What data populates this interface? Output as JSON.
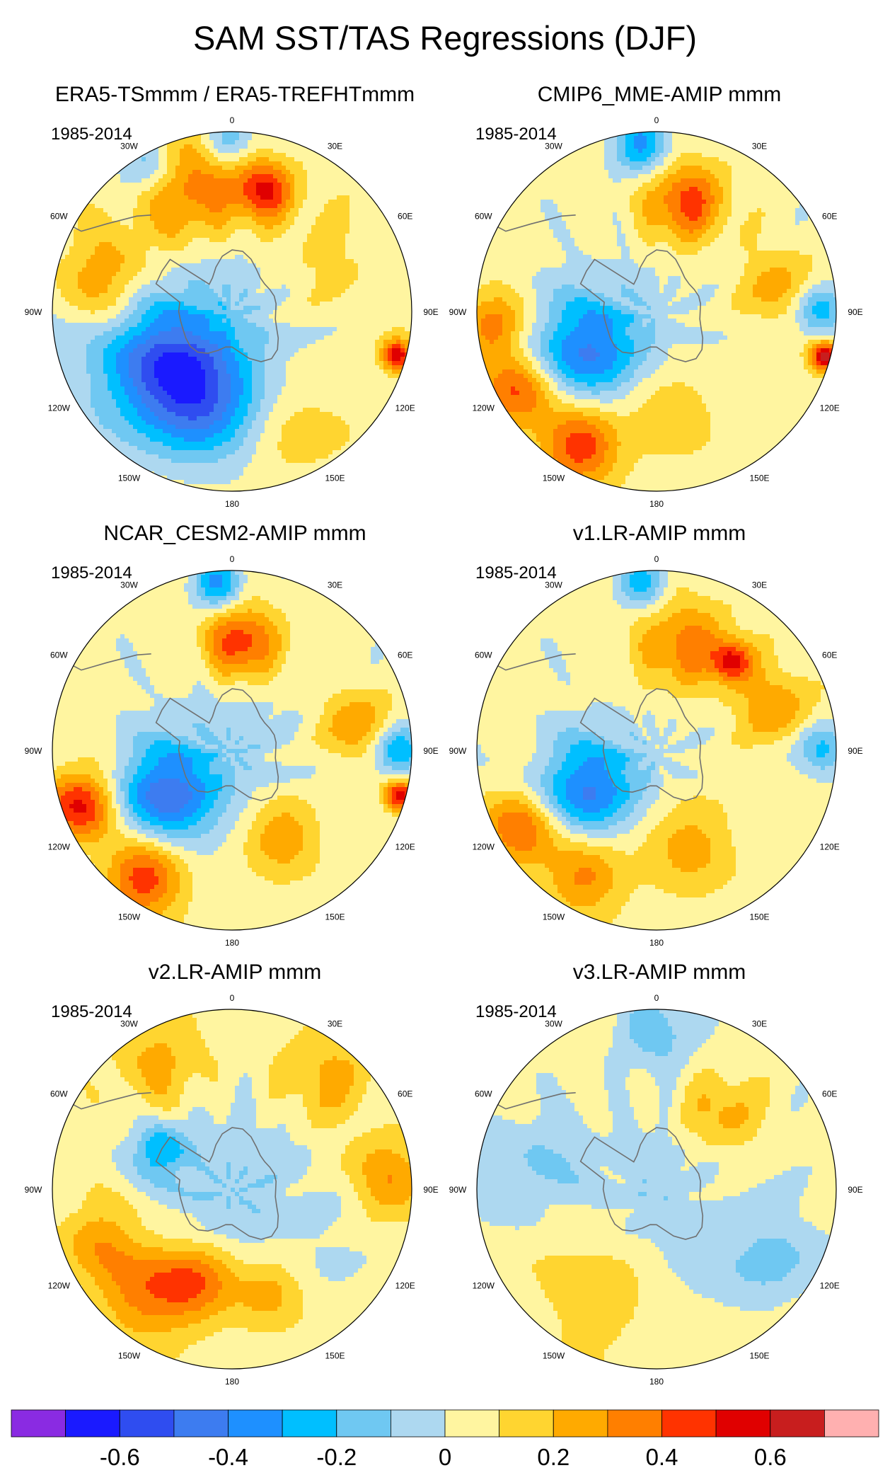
{
  "chart_data": {
    "type": "heatmap",
    "title": "SAM SST/TAS Regressions (DJF)",
    "projection": "south-polar-stereographic",
    "lon_labels": [
      "0",
      "30E",
      "60E",
      "90E",
      "120E",
      "150E",
      "180",
      "150W",
      "120W",
      "90W",
      "60W",
      "30W"
    ],
    "panels": [
      {
        "id": "era5",
        "title": "ERA5-TSmmm / ERA5-TREFHTmmm",
        "period": "1985-2014",
        "blobs": [
          {
            "lon": -20,
            "r": 0.72,
            "value": 0.35,
            "spread": 0.22
          },
          {
            "lon": 15,
            "r": 0.7,
            "value": 0.45,
            "spread": 0.12
          },
          {
            "lon": -75,
            "r": 0.72,
            "value": 0.25,
            "spread": 0.18
          },
          {
            "lon": -125,
            "r": 0.52,
            "value": -0.4,
            "spread": 0.26
          },
          {
            "lon": -150,
            "r": 0.48,
            "value": -0.3,
            "spread": 0.22
          },
          {
            "lon": -170,
            "r": 0.58,
            "value": -0.2,
            "spread": 0.2
          },
          {
            "lon": -30,
            "r": 0.93,
            "value": -0.28,
            "spread": 0.12
          },
          {
            "lon": 0,
            "r": 0.95,
            "value": -0.25,
            "spread": 0.1
          },
          {
            "lon": 105,
            "r": 0.95,
            "value": 0.55,
            "spread": 0.06
          },
          {
            "lon": 150,
            "r": 0.7,
            "value": 0.15,
            "spread": 0.22
          },
          {
            "lon": 60,
            "r": 0.55,
            "value": 0.12,
            "spread": 0.25
          },
          {
            "lon": 0,
            "r": 0.0,
            "value": -0.12,
            "spread": 0.4
          }
        ]
      },
      {
        "id": "cmip6",
        "title": "CMIP6_MME-AMIP  mmm",
        "period": "1985-2014",
        "blobs": [
          {
            "lon": 15,
            "r": 0.63,
            "value": 0.4,
            "spread": 0.16
          },
          {
            "lon": -5,
            "r": 0.93,
            "value": -0.35,
            "spread": 0.12
          },
          {
            "lon": -120,
            "r": 0.9,
            "value": 0.4,
            "spread": 0.15
          },
          {
            "lon": -150,
            "r": 0.85,
            "value": 0.45,
            "spread": 0.15
          },
          {
            "lon": -95,
            "r": 0.92,
            "value": 0.35,
            "spread": 0.12
          },
          {
            "lon": -120,
            "r": 0.45,
            "value": -0.45,
            "spread": 0.22
          },
          {
            "lon": 90,
            "r": 0.92,
            "value": -0.35,
            "spread": 0.1
          },
          {
            "lon": 105,
            "r": 0.97,
            "value": 0.6,
            "spread": 0.06
          },
          {
            "lon": 80,
            "r": 0.7,
            "value": 0.22,
            "spread": 0.15
          },
          {
            "lon": 170,
            "r": 0.55,
            "value": 0.18,
            "spread": 0.18
          },
          {
            "lon": 0,
            "r": 0.0,
            "value": -0.05,
            "spread": 0.3
          }
        ]
      },
      {
        "id": "cesm2",
        "title": "NCAR_CESM2-AMIP  mmm",
        "period": "1985-2014",
        "blobs": [
          {
            "lon": 5,
            "r": 0.6,
            "value": 0.45,
            "spread": 0.14
          },
          {
            "lon": -5,
            "r": 0.93,
            "value": -0.35,
            "spread": 0.1
          },
          {
            "lon": -110,
            "r": 0.9,
            "value": 0.5,
            "spread": 0.14
          },
          {
            "lon": -145,
            "r": 0.85,
            "value": 0.45,
            "spread": 0.15
          },
          {
            "lon": -125,
            "r": 0.45,
            "value": -0.5,
            "spread": 0.2
          },
          {
            "lon": 90,
            "r": 0.93,
            "value": -0.4,
            "spread": 0.1
          },
          {
            "lon": 105,
            "r": 0.97,
            "value": 0.55,
            "spread": 0.06
          },
          {
            "lon": 80,
            "r": 0.72,
            "value": 0.28,
            "spread": 0.14
          },
          {
            "lon": 150,
            "r": 0.55,
            "value": 0.3,
            "spread": 0.15
          },
          {
            "lon": 0,
            "r": 0.0,
            "value": -0.1,
            "spread": 0.3
          }
        ]
      },
      {
        "id": "v1",
        "title": "v1.LR-AMIP  mmm",
        "period": "1985-2014",
        "blobs": [
          {
            "lon": 15,
            "r": 0.6,
            "value": 0.32,
            "spread": 0.18
          },
          {
            "lon": 40,
            "r": 0.65,
            "value": 0.45,
            "spread": 0.08
          },
          {
            "lon": -5,
            "r": 0.93,
            "value": -0.28,
            "spread": 0.1
          },
          {
            "lon": -120,
            "r": 0.88,
            "value": 0.38,
            "spread": 0.15
          },
          {
            "lon": -150,
            "r": 0.8,
            "value": 0.3,
            "spread": 0.15
          },
          {
            "lon": -120,
            "r": 0.45,
            "value": -0.45,
            "spread": 0.2
          },
          {
            "lon": 90,
            "r": 0.93,
            "value": -0.3,
            "spread": 0.1
          },
          {
            "lon": 70,
            "r": 0.7,
            "value": 0.25,
            "spread": 0.15
          },
          {
            "lon": 160,
            "r": 0.55,
            "value": 0.25,
            "spread": 0.18
          },
          {
            "lon": 0,
            "r": 0.0,
            "value": -0.05,
            "spread": 0.3
          }
        ]
      },
      {
        "id": "v2",
        "title": "v2.LR-AMIP  mmm",
        "period": "1985-2014",
        "blobs": [
          {
            "lon": -30,
            "r": 0.8,
            "value": 0.2,
            "spread": 0.2
          },
          {
            "lon": 40,
            "r": 0.8,
            "value": 0.2,
            "spread": 0.2
          },
          {
            "lon": 85,
            "r": 0.85,
            "value": 0.3,
            "spread": 0.14
          },
          {
            "lon": -140,
            "r": 0.75,
            "value": 0.3,
            "spread": 0.2
          },
          {
            "lon": -160,
            "r": 0.55,
            "value": 0.3,
            "spread": 0.15
          },
          {
            "lon": -110,
            "r": 0.8,
            "value": 0.22,
            "spread": 0.15
          },
          {
            "lon": 160,
            "r": 0.6,
            "value": 0.25,
            "spread": 0.15
          },
          {
            "lon": -60,
            "r": 0.45,
            "value": -0.3,
            "spread": 0.1
          },
          {
            "lon": 0,
            "r": 0.0,
            "value": -0.12,
            "spread": 0.4
          }
        ]
      },
      {
        "id": "v3",
        "title": "v3.LR-AMIP  mmm",
        "period": "1985-2014",
        "blobs": [
          {
            "lon": 0,
            "r": 0.88,
            "value": -0.2,
            "spread": 0.15
          },
          {
            "lon": 40,
            "r": 0.55,
            "value": 0.22,
            "spread": 0.15
          },
          {
            "lon": -150,
            "r": 0.7,
            "value": 0.1,
            "spread": 0.25
          },
          {
            "lon": 120,
            "r": 0.75,
            "value": -0.15,
            "spread": 0.2
          },
          {
            "lon": -80,
            "r": 0.7,
            "value": -0.15,
            "spread": 0.2
          },
          {
            "lon": 0,
            "r": 0.0,
            "value": -0.1,
            "spread": 0.3
          }
        ]
      }
    ],
    "colorbar": {
      "levels": [
        -0.7,
        -0.6,
        -0.5,
        -0.4,
        -0.3,
        -0.2,
        -0.1,
        0,
        0.1,
        0.2,
        0.3,
        0.4,
        0.5,
        0.6,
        0.7
      ],
      "colors": [
        "#8a2be2",
        "#1a1aff",
        "#2f4df0",
        "#3d7cf0",
        "#1e90ff",
        "#00bfff",
        "#6fc8f2",
        "#add8f0",
        "#fff5a0",
        "#ffd530",
        "#ffaa00",
        "#ff7f00",
        "#ff3300",
        "#e00000",
        "#c81e1e",
        "#ffb0b0"
      ],
      "tick_values": [
        -0.6,
        -0.4,
        -0.2,
        0,
        0.2,
        0.4,
        0.6
      ],
      "tick_labels": [
        "-0.6",
        "-0.4",
        "-0.2",
        "0",
        "0.2",
        "0.4",
        "0.6"
      ]
    }
  }
}
